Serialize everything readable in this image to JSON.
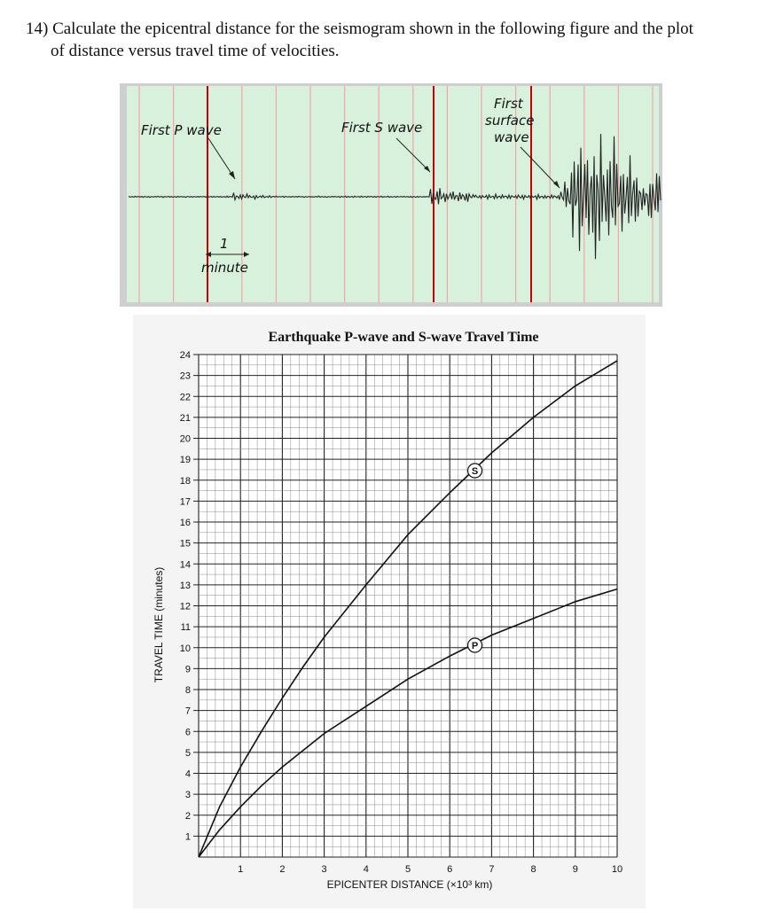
{
  "question": {
    "line1": "14) Calculate the epicentral distance for the seismogram shown in the following figure and the plot",
    "line2": "of distance versus travel time of velocities."
  },
  "seismogram": {
    "labels": {
      "p_wave": "First P wave",
      "s_wave": "First S wave",
      "surface_1": "First",
      "surface_2": "surface",
      "surface_3": "wave",
      "scale_value": "1",
      "scale_unit": "minute"
    },
    "colors": {
      "background": "#d7f1dc",
      "gridline": "#f2a6a6",
      "arrival": "#cc0000",
      "trace": "#222222"
    }
  },
  "chart_data": {
    "type": "line",
    "title": "Earthquake P-wave and S-wave Travel Time",
    "xlabel": "EPICENTER DISTANCE (×10³ km)",
    "ylabel": "TRAVEL TIME (minutes)",
    "xlim": [
      0,
      10
    ],
    "ylim": [
      0,
      24
    ],
    "xticks": [
      1,
      2,
      3,
      4,
      5,
      6,
      7,
      8,
      9,
      10
    ],
    "yticks": [
      1,
      2,
      3,
      4,
      5,
      6,
      7,
      8,
      9,
      10,
      11,
      12,
      13,
      14,
      15,
      16,
      17,
      18,
      19,
      20,
      21,
      22,
      23,
      24
    ],
    "grid": true,
    "series": [
      {
        "name": "S",
        "x": [
          0,
          0.5,
          1,
          1.5,
          2,
          2.5,
          3,
          4,
          5,
          6,
          7,
          8,
          9,
          10
        ],
        "y": [
          0,
          2.4,
          4.3,
          6.0,
          7.6,
          9.1,
          10.5,
          13.0,
          15.4,
          17.4,
          19.3,
          21.0,
          22.5,
          23.7
        ],
        "marker_x": 6.6
      },
      {
        "name": "P",
        "x": [
          0,
          0.5,
          1,
          1.5,
          2,
          2.5,
          3,
          4,
          5,
          6,
          7,
          8,
          9,
          10
        ],
        "y": [
          0,
          1.3,
          2.4,
          3.4,
          4.3,
          5.1,
          5.9,
          7.2,
          8.5,
          9.6,
          10.6,
          11.4,
          12.2,
          12.8
        ],
        "marker_x": 6.6
      }
    ]
  }
}
